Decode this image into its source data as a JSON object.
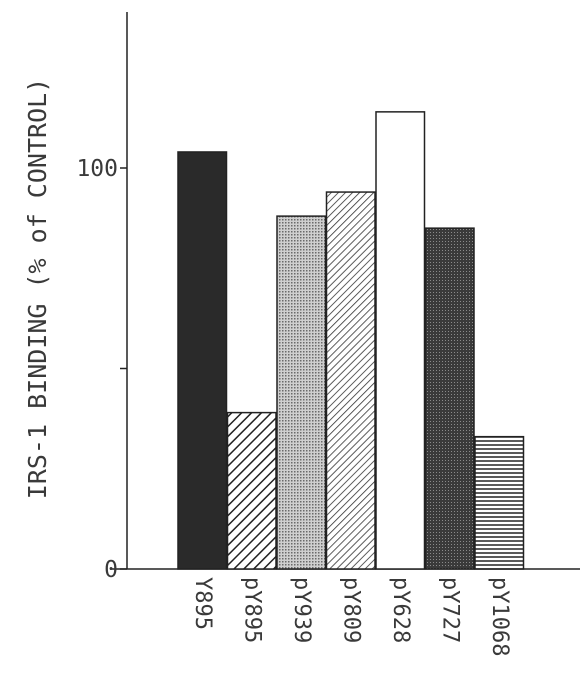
{
  "chart_data": {
    "type": "bar",
    "title": "",
    "xlabel": "",
    "ylabel": "IRS-1 BINDING (% of CONTROL)",
    "ylim": [
      0,
      140
    ],
    "yticks": [
      {
        "value": 0,
        "label": "0"
      },
      {
        "value": 50,
        "label": ""
      },
      {
        "value": 100,
        "label": "100"
      }
    ],
    "categories": [
      "Y895",
      "pY895",
      "pY939",
      "pY809",
      "pY628",
      "pY727",
      "pY1068"
    ],
    "values": [
      104,
      39,
      88,
      94,
      114,
      85,
      33
    ],
    "fills": [
      "solid-dark",
      "diagonal-hatch",
      "fine-dots",
      "diagonal-hatch-fine",
      "white",
      "dark-dots",
      "horizontal-lines"
    ],
    "grid": false,
    "legend": "none"
  }
}
